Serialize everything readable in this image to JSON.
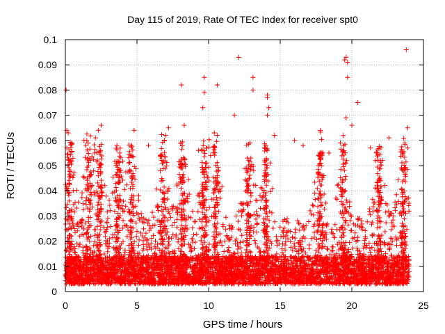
{
  "chart_data": {
    "type": "scatter",
    "title": "Day 115 of 2019, Rate Of TEC Index for receiver spt0",
    "xlabel": "GPS time / hours",
    "ylabel": "ROTI / TECUs",
    "xlim": [
      0,
      25
    ],
    "ylim": [
      0,
      0.1
    ],
    "xticks": [
      0,
      5,
      10,
      15,
      20,
      25
    ],
    "xtick_labels": [
      "0",
      "5",
      "10",
      "15",
      "20",
      "25"
    ],
    "yticks": [
      0,
      0.01,
      0.02,
      0.03,
      0.04,
      0.05,
      0.06,
      0.07,
      0.08,
      0.09,
      0.1
    ],
    "ytick_labels": [
      "0",
      "0.01",
      "0.02",
      "0.03",
      "0.04",
      "0.05",
      "0.06",
      "0.07",
      "0.08",
      "0.09",
      "0.1"
    ],
    "grid": true,
    "marker": "+",
    "color": "#ff0000",
    "series": [
      {
        "name": "ROTI",
        "data_range": {
          "x": [
            0,
            24
          ],
          "y_min": 0.001,
          "y_max": 0.096
        },
        "points": [
          [
            23.8,
            0.096
          ],
          [
            12.1,
            0.093
          ],
          [
            19.6,
            0.093
          ],
          [
            19.5,
            0.092
          ],
          [
            19.7,
            0.091
          ],
          [
            9.7,
            0.085
          ],
          [
            19.7,
            0.085
          ],
          [
            13.1,
            0.085
          ],
          [
            10.6,
            0.082
          ],
          [
            8.1,
            0.082
          ],
          [
            0.05,
            0.08
          ],
          [
            13.1,
            0.08
          ],
          [
            9.7,
            0.079
          ],
          [
            14.1,
            0.078
          ],
          [
            14.1,
            0.077
          ],
          [
            20.4,
            0.075
          ],
          [
            14.2,
            0.073
          ],
          [
            9.6,
            0.073
          ],
          [
            11.8,
            0.07
          ],
          [
            14.1,
            0.07
          ],
          [
            19.6,
            0.069
          ],
          [
            20.0,
            0.066
          ],
          [
            2.5,
            0.066
          ],
          [
            23.9,
            0.065
          ],
          [
            0.1,
            0.064
          ],
          [
            4.8,
            0.064
          ],
          [
            17.8,
            0.064
          ],
          [
            7.2,
            0.065
          ],
          [
            0.2,
            0.063
          ],
          [
            8.3,
            0.066
          ],
          [
            10.4,
            0.063
          ],
          [
            10.6,
            0.062
          ],
          [
            7.0,
            0.062
          ],
          [
            2.1,
            0.061
          ],
          [
            14.6,
            0.062
          ],
          [
            22.6,
            0.061
          ],
          [
            16.0,
            0.06
          ],
          [
            1.3,
            0.06
          ],
          [
            12.9,
            0.059
          ],
          [
            19.2,
            0.059
          ],
          [
            23.7,
            0.059
          ],
          [
            5.8,
            0.058
          ],
          [
            0.1,
            0.057
          ],
          [
            16.6,
            0.058
          ],
          [
            14.0,
            0.058
          ],
          [
            21.3,
            0.057
          ],
          [
            9.3,
            0.056
          ],
          [
            3.8,
            0.055
          ],
          [
            18.4,
            0.055
          ],
          [
            0.3,
            0.052
          ],
          [
            0.1,
            0.04
          ],
          [
            0.2,
            0.041
          ],
          [
            0.2,
            0.039
          ],
          [
            23.9,
            0.057
          ]
        ]
      }
    ],
    "density_profile": {
      "x_peaks": [
        0.3,
        1.6,
        2.4,
        3.7,
        4.6,
        6.8,
        8.2,
        9.7,
        10.5,
        12.8,
        14.0,
        17.8,
        19.4,
        21.9,
        23.6
      ],
      "baseline_low": 0.003,
      "baseline_high": 0.014
    }
  }
}
